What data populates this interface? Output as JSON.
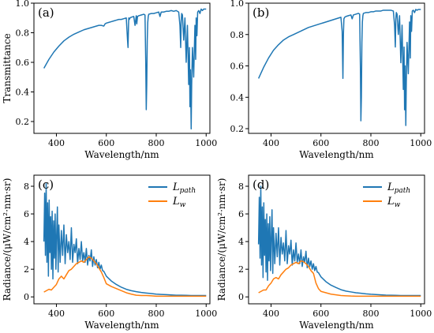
{
  "colors": {
    "blue": "#1f77b4",
    "orange": "#ff7f0e"
  },
  "chart_data": [
    {
      "panel": "(a)",
      "type": "line",
      "xlabel": "Wavelength/nm",
      "ylabel": "Transmittance",
      "xlim": [
        310,
        1015
      ],
      "ylim": [
        0.12,
        1.0
      ],
      "xticks": [
        400,
        600,
        800,
        1000
      ],
      "yticks": [
        0.2,
        0.4,
        0.6,
        0.8,
        1.0
      ],
      "grid": false,
      "series": [
        {
          "color": "#1f77b4",
          "x": [
            350,
            370,
            390,
            410,
            430,
            450,
            470,
            490,
            510,
            530,
            550,
            570,
            580,
            590,
            595,
            600,
            610,
            620,
            630,
            640,
            650,
            660,
            670,
            680,
            685,
            687,
            688,
            689,
            690,
            692,
            695,
            700,
            710,
            715,
            718,
            720,
            722,
            725,
            730,
            740,
            750,
            755,
            758,
            760,
            762,
            764,
            766,
            768,
            770,
            780,
            790,
            800,
            810,
            815,
            820,
            830,
            840,
            850,
            860,
            870,
            880,
            890,
            895,
            898,
            900,
            902,
            905,
            910,
            915,
            920,
            925,
            930,
            933,
            935,
            937,
            940,
            942,
            945,
            950,
            955,
            958,
            960,
            963,
            966,
            970,
            975,
            980,
            985,
            990,
            995,
            1000
          ],
          "y": [
            0.56,
            0.62,
            0.67,
            0.71,
            0.745,
            0.77,
            0.79,
            0.805,
            0.82,
            0.83,
            0.84,
            0.85,
            0.85,
            0.845,
            0.86,
            0.865,
            0.87,
            0.875,
            0.88,
            0.885,
            0.89,
            0.89,
            0.895,
            0.9,
            0.75,
            0.7,
            0.78,
            0.85,
            0.9,
            0.89,
            0.9,
            0.905,
            0.91,
            0.85,
            0.89,
            0.915,
            0.86,
            0.91,
            0.915,
            0.92,
            0.925,
            0.92,
            0.6,
            0.28,
            0.45,
            0.75,
            0.87,
            0.91,
            0.925,
            0.93,
            0.93,
            0.935,
            0.94,
            0.91,
            0.94,
            0.94,
            0.945,
            0.945,
            0.95,
            0.945,
            0.95,
            0.94,
            0.85,
            0.7,
            0.88,
            0.93,
            0.92,
            0.75,
            0.9,
            0.6,
            0.85,
            0.45,
            0.7,
            0.3,
            0.55,
            0.15,
            0.45,
            0.7,
            0.5,
            0.85,
            0.62,
            0.9,
            0.78,
            0.94,
            0.95,
            0.93,
            0.96,
            0.95,
            0.96,
            0.96,
            0.96
          ]
        }
      ]
    },
    {
      "panel": "(b)",
      "type": "line",
      "xlabel": "Wavelength/nm",
      "ylabel": "",
      "xlim": [
        310,
        1015
      ],
      "ylim": [
        0.17,
        1.0
      ],
      "xticks": [
        400,
        600,
        800,
        1000
      ],
      "yticks": [
        0.2,
        0.4,
        0.6,
        0.8,
        1.0
      ],
      "grid": false,
      "series": [
        {
          "color": "#1f77b4",
          "x": [
            350,
            370,
            390,
            410,
            430,
            450,
            470,
            490,
            510,
            530,
            550,
            570,
            590,
            600,
            610,
            620,
            630,
            640,
            650,
            660,
            670,
            680,
            685,
            688,
            690,
            692,
            695,
            700,
            710,
            720,
            725,
            730,
            740,
            750,
            755,
            758,
            760,
            762,
            764,
            766,
            768,
            770,
            780,
            790,
            800,
            810,
            820,
            830,
            840,
            850,
            860,
            870,
            880,
            890,
            895,
            898,
            900,
            902,
            905,
            910,
            915,
            920,
            925,
            930,
            933,
            935,
            937,
            940,
            942,
            945,
            950,
            955,
            958,
            960,
            963,
            966,
            970,
            975,
            980,
            985,
            990,
            995,
            1000
          ],
          "y": [
            0.52,
            0.59,
            0.65,
            0.7,
            0.735,
            0.765,
            0.785,
            0.8,
            0.815,
            0.83,
            0.845,
            0.855,
            0.865,
            0.87,
            0.875,
            0.88,
            0.885,
            0.89,
            0.895,
            0.9,
            0.905,
            0.91,
            0.82,
            0.52,
            0.8,
            0.9,
            0.91,
            0.915,
            0.92,
            0.925,
            0.9,
            0.925,
            0.93,
            0.935,
            0.93,
            0.6,
            0.25,
            0.4,
            0.75,
            0.88,
            0.92,
            0.935,
            0.94,
            0.94,
            0.945,
            0.945,
            0.95,
            0.95,
            0.95,
            0.955,
            0.955,
            0.955,
            0.955,
            0.95,
            0.86,
            0.72,
            0.9,
            0.94,
            0.93,
            0.8,
            0.92,
            0.62,
            0.86,
            0.45,
            0.72,
            0.32,
            0.6,
            0.22,
            0.5,
            0.75,
            0.55,
            0.88,
            0.65,
            0.92,
            0.82,
            0.95,
            0.955,
            0.94,
            0.96,
            0.955,
            0.96,
            0.96,
            0.96
          ]
        }
      ]
    },
    {
      "panel": "(c)",
      "type": "line",
      "xlabel": "Wavelength/nm",
      "ylabel": "Radiance/(μW/cm²·nm·sr)",
      "xlim": [
        310,
        1015
      ],
      "ylim": [
        -0.5,
        8.8
      ],
      "xticks": [
        400,
        600,
        800,
        1000
      ],
      "yticks": [
        0,
        2,
        4,
        6,
        8
      ],
      "grid": false,
      "legend": {
        "placement": "top-right",
        "entries": [
          {
            "main": "L",
            "sub": "path",
            "color": "#1f77b4"
          },
          {
            "main": "L",
            "sub": "w",
            "color": "#ff7f0e"
          }
        ]
      },
      "series": [
        {
          "name": "Lpath",
          "color": "#1f77b4",
          "x": [
            350,
            353,
            356,
            359,
            362,
            365,
            368,
            371,
            374,
            377,
            380,
            383,
            386,
            389,
            392,
            395,
            398,
            401,
            404,
            407,
            410,
            415,
            420,
            425,
            430,
            435,
            440,
            445,
            450,
            455,
            460,
            465,
            470,
            475,
            480,
            485,
            490,
            495,
            500,
            505,
            510,
            515,
            520,
            525,
            530,
            535,
            540,
            545,
            550,
            555,
            560,
            565,
            570,
            575,
            580,
            585,
            590,
            600,
            620,
            640,
            660,
            680,
            700,
            720,
            740,
            760,
            780,
            800,
            820,
            840,
            860,
            880,
            900,
            920,
            940,
            960,
            980,
            1000
          ],
          "y": [
            4.0,
            7.5,
            3.0,
            8.2,
            2.5,
            6.8,
            1.5,
            7.0,
            3.2,
            5.8,
            2.0,
            6.2,
            1.3,
            5.5,
            2.8,
            6.0,
            2.0,
            4.5,
            6.5,
            1.8,
            5.2,
            2.5,
            4.8,
            3.0,
            5.2,
            2.4,
            4.5,
            3.2,
            4.0,
            2.7,
            5.0,
            2.5,
            3.8,
            3.2,
            4.2,
            2.4,
            3.5,
            2.7,
            4.0,
            2.6,
            3.2,
            2.5,
            3.5,
            2.3,
            3.0,
            2.6,
            3.4,
            2.2,
            2.9,
            2.3,
            2.7,
            2.1,
            2.5,
            2.0,
            2.3,
            1.9,
            1.85,
            1.5,
            1.15,
            0.9,
            0.7,
            0.55,
            0.45,
            0.38,
            0.32,
            0.28,
            0.24,
            0.2,
            0.18,
            0.16,
            0.14,
            0.12,
            0.12,
            0.11,
            0.1,
            0.1,
            0.1,
            0.1
          ]
        },
        {
          "name": "Lw",
          "color": "#ff7f0e",
          "x": [
            350,
            360,
            370,
            380,
            390,
            400,
            410,
            420,
            430,
            440,
            450,
            460,
            470,
            480,
            490,
            500,
            510,
            520,
            530,
            540,
            550,
            560,
            570,
            580,
            590,
            600,
            620,
            640,
            660,
            680,
            700,
            720,
            740,
            760,
            780,
            800,
            850,
            900,
            950,
            1000
          ],
          "y": [
            0.35,
            0.45,
            0.55,
            0.5,
            0.7,
            0.9,
            1.3,
            1.5,
            1.3,
            1.6,
            1.9,
            2.0,
            2.2,
            2.4,
            2.5,
            2.6,
            2.5,
            2.7,
            2.9,
            2.8,
            2.6,
            2.4,
            2.1,
            1.8,
            1.4,
            0.95,
            0.75,
            0.6,
            0.45,
            0.3,
            0.2,
            0.12,
            0.1,
            0.1,
            0.08,
            0.05,
            0.05,
            0.05,
            0.05,
            0.05
          ]
        }
      ]
    },
    {
      "panel": "(d)",
      "type": "line",
      "xlabel": "Wavelength/nm",
      "ylabel": "Radiance/(μW/cm²·nm·sr)",
      "xlim": [
        310,
        1015
      ],
      "ylim": [
        -0.5,
        8.8
      ],
      "xticks": [
        400,
        600,
        800,
        1000
      ],
      "yticks": [
        0,
        2,
        4,
        6,
        8
      ],
      "grid": false,
      "legend": {
        "placement": "top-right",
        "entries": [
          {
            "main": "L",
            "sub": "path",
            "color": "#1f77b4"
          },
          {
            "main": "L",
            "sub": "w",
            "color": "#ff7f0e"
          }
        ]
      },
      "series": [
        {
          "name": "Lpath",
          "color": "#1f77b4",
          "x": [
            350,
            353,
            356,
            359,
            362,
            365,
            368,
            371,
            374,
            377,
            380,
            383,
            386,
            389,
            392,
            395,
            398,
            401,
            404,
            407,
            410,
            415,
            420,
            425,
            430,
            435,
            440,
            445,
            450,
            455,
            460,
            465,
            470,
            475,
            480,
            485,
            490,
            495,
            500,
            505,
            510,
            515,
            520,
            525,
            530,
            535,
            540,
            545,
            550,
            555,
            560,
            565,
            570,
            575,
            580,
            585,
            590,
            600,
            620,
            640,
            660,
            680,
            700,
            720,
            740,
            760,
            780,
            800,
            820,
            840,
            860,
            880,
            900,
            920,
            940,
            960,
            980,
            1000
          ],
          "y": [
            3.8,
            7.2,
            2.8,
            8.0,
            2.3,
            6.5,
            1.4,
            6.8,
            3.0,
            5.6,
            1.8,
            6.0,
            1.2,
            5.3,
            2.6,
            5.8,
            1.9,
            4.3,
            6.3,
            1.7,
            5.0,
            2.4,
            4.6,
            2.9,
            5.0,
            2.3,
            4.3,
            3.1,
            3.9,
            2.6,
            4.8,
            2.4,
            3.7,
            3.1,
            4.1,
            2.3,
            3.4,
            2.6,
            3.9,
            2.5,
            3.1,
            2.4,
            3.4,
            2.2,
            2.9,
            2.5,
            3.3,
            2.1,
            2.8,
            2.2,
            2.6,
            2.0,
            2.4,
            1.9,
            2.2,
            1.8,
            1.75,
            1.45,
            1.1,
            0.85,
            0.68,
            0.52,
            0.42,
            0.36,
            0.3,
            0.26,
            0.22,
            0.19,
            0.17,
            0.15,
            0.13,
            0.12,
            0.11,
            0.1,
            0.1,
            0.1,
            0.1,
            0.1
          ]
        },
        {
          "name": "Lw",
          "color": "#ff7f0e",
          "x": [
            350,
            360,
            370,
            380,
            390,
            400,
            410,
            420,
            430,
            440,
            450,
            460,
            470,
            480,
            490,
            500,
            510,
            520,
            530,
            540,
            550,
            560,
            570,
            580,
            590,
            600,
            620,
            640,
            660,
            680,
            700,
            720,
            740,
            760,
            780,
            800,
            850,
            900,
            950,
            1000
          ],
          "y": [
            0.3,
            0.4,
            0.5,
            0.5,
            0.8,
            1.0,
            1.3,
            1.4,
            1.3,
            1.6,
            1.8,
            2.0,
            2.1,
            2.3,
            2.4,
            2.5,
            2.4,
            2.6,
            2.55,
            2.4,
            2.2,
            1.9,
            1.7,
            1.0,
            0.6,
            0.4,
            0.3,
            0.2,
            0.15,
            0.1,
            0.08,
            0.06,
            0.05,
            0.05,
            0.05,
            0.05,
            0.05,
            0.05,
            0.05,
            0.05
          ]
        }
      ]
    }
  ]
}
